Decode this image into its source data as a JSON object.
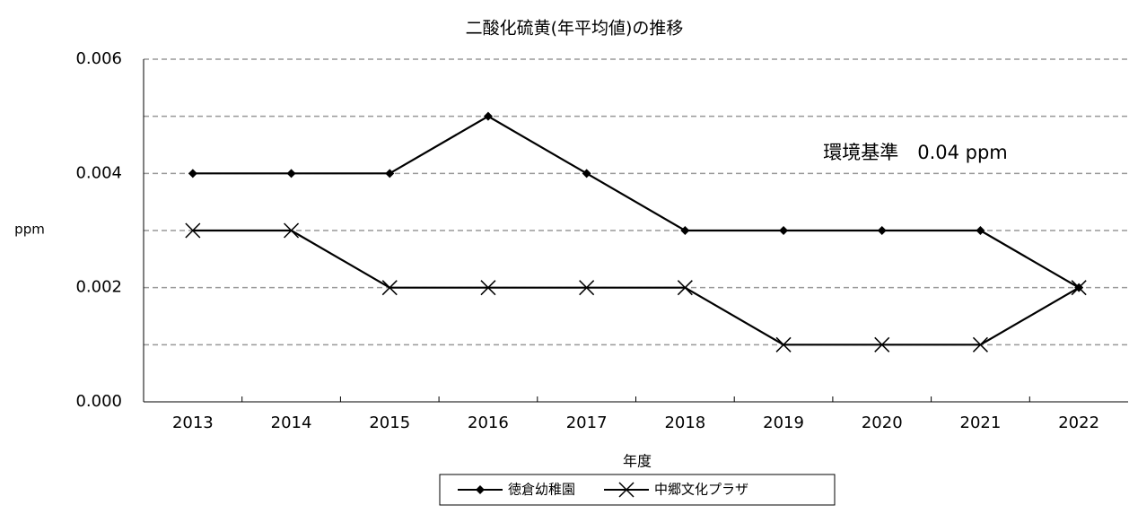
{
  "chart_data": {
    "type": "line",
    "title": "二酸化硫黄(年平均値)の推移",
    "y_label": "ppm",
    "x_label": "年度",
    "annotation": "環境基準　0.04 ppm",
    "categories": [
      "2013",
      "2014",
      "2015",
      "2016",
      "2017",
      "2018",
      "2019",
      "2020",
      "2021",
      "2022"
    ],
    "series": [
      {
        "name": "徳倉幼稚園",
        "color": "#000000",
        "marker": "diamond",
        "values": [
          0.004,
          0.004,
          0.004,
          0.005,
          0.004,
          0.003,
          0.003,
          0.003,
          0.003,
          0.002
        ]
      },
      {
        "name": "中郷文化プラザ",
        "color": "#000000",
        "marker": "x",
        "values": [
          0.003,
          0.003,
          0.002,
          0.002,
          0.002,
          0.002,
          0.001,
          0.001,
          0.001,
          0.002
        ]
      }
    ],
    "ylim": [
      0,
      0.006
    ],
    "yticks": [
      {
        "value": 0,
        "label": "0.000"
      },
      0.002,
      0.004,
      0.006
    ],
    "minor_gridlines": [
      0.001,
      0.003,
      0.005
    ],
    "grid": true,
    "legend": "bottom"
  }
}
